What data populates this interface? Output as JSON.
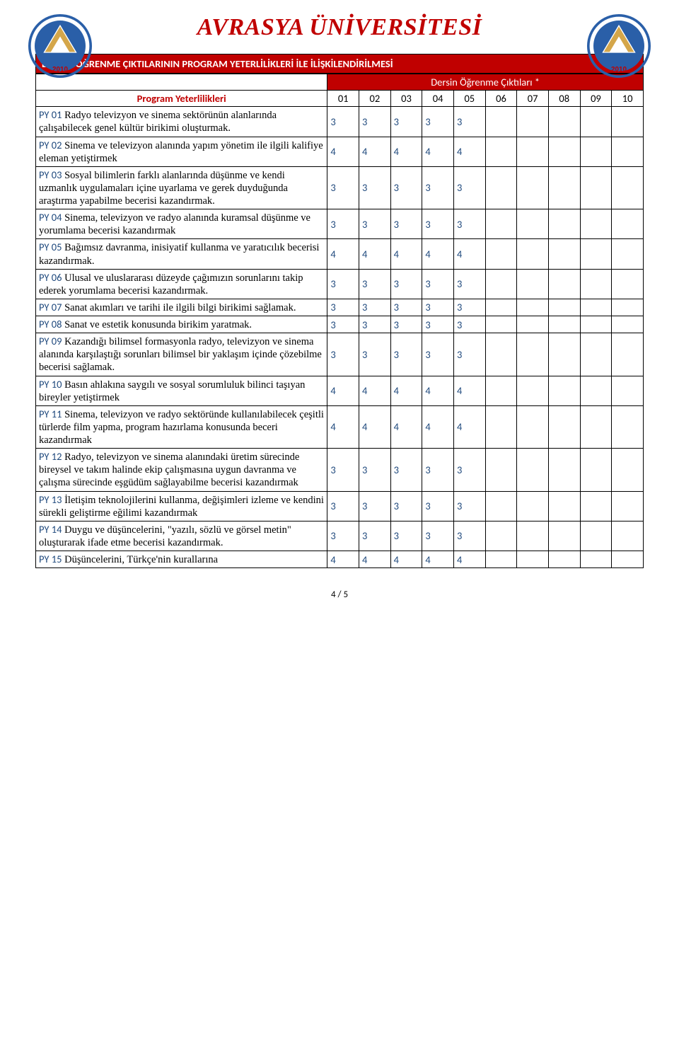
{
  "header": {
    "title": "AVRASYA ÜNİVERSİTESİ",
    "logo_top": "AVRASYA ÜNİVERSİTESİ",
    "logo_year": "2010"
  },
  "section_bar": "DERSİN ÖĞRENME ÇIKTILARININ PROGRAM YETERLİLİKLERİ İLE İLİŞKİLENDİRİLMESİ",
  "table": {
    "outcomes_label": "Dersin Öğrenme Çıktıları *",
    "program_label": "Program Yeterlilikleri",
    "col_headers": [
      "01",
      "02",
      "03",
      "04",
      "05",
      "06",
      "07",
      "08",
      "09",
      "10"
    ],
    "rows": [
      {
        "code": "PY 01",
        "text": " Radyo televizyon ve sinema sektörünün alanlarında çalışabilecek genel kültür birikimi oluşturmak.",
        "vals": [
          "3",
          "3",
          "3",
          "3",
          "3",
          "",
          "",
          "",
          "",
          ""
        ]
      },
      {
        "code": "PY 02",
        "text": " Sinema ve televizyon alanında yapım yönetim ile ilgili kalifiye eleman yetiştirmek",
        "vals": [
          "4",
          "4",
          "4",
          "4",
          "4",
          "",
          "",
          "",
          "",
          ""
        ]
      },
      {
        "code": "PY 03",
        "text": " Sosyal bilimlerin farklı alanlarında düşünme ve kendi uzmanlık uygulamaları içine uyarlama ve gerek duyduğunda araştırma yapabilme becerisi kazandırmak.",
        "vals": [
          "3",
          "3",
          "3",
          "3",
          "3",
          "",
          "",
          "",
          "",
          ""
        ]
      },
      {
        "code": "PY 04",
        "text": " Sinema, televizyon ve radyo alanında kuramsal düşünme ve yorumlama becerisi kazandırmak",
        "vals": [
          "3",
          "3",
          "3",
          "3",
          "3",
          "",
          "",
          "",
          "",
          ""
        ]
      },
      {
        "code": "PY 05",
        "text": " Bağımsız davranma, inisiyatif kullanma ve yaratıcılık becerisi kazandırmak.",
        "vals": [
          "4",
          "4",
          "4",
          "4",
          "4",
          "",
          "",
          "",
          "",
          ""
        ]
      },
      {
        "code": "PY 06",
        "text": " Ulusal ve uluslararası düzeyde çağımızın sorunlarını takip ederek yorumlama becerisi kazandırmak.",
        "vals": [
          "3",
          "3",
          "3",
          "3",
          "3",
          "",
          "",
          "",
          "",
          ""
        ]
      },
      {
        "code": "PY 07",
        "text": " Sanat akımları ve tarihi ile ilgili bilgi birikimi sağlamak.",
        "vals": [
          "3",
          "3",
          "3",
          "3",
          "3",
          "",
          "",
          "",
          "",
          ""
        ]
      },
      {
        "code": "PY 08",
        "text": " Sanat ve estetik konusunda birikim yaratmak.",
        "vals": [
          "3",
          "3",
          "3",
          "3",
          "3",
          "",
          "",
          "",
          "",
          ""
        ]
      },
      {
        "code": "PY 09",
        "text": " Kazandığı bilimsel formasyonla radyo, televizyon ve sinema alanında karşılaştığı sorunları bilimsel bir yaklaşım içinde çözebilme becerisi sağlamak.",
        "vals": [
          "3",
          "3",
          "3",
          "3",
          "3",
          "",
          "",
          "",
          "",
          ""
        ]
      },
      {
        "code": "PY 10",
        "text": " Basın ahlakına saygılı ve sosyal sorumluluk bilinci taşıyan bireyler yetiştirmek",
        "vals": [
          "4",
          "4",
          "4",
          "4",
          "4",
          "",
          "",
          "",
          "",
          ""
        ]
      },
      {
        "code": "PY 11",
        "text": " Sinema, televizyon ve radyo sektöründe kullanılabilecek çeşitli türlerde film yapma, program hazırlama konusunda beceri kazandırmak",
        "vals": [
          "4",
          "4",
          "4",
          "4",
          "4",
          "",
          "",
          "",
          "",
          ""
        ]
      },
      {
        "code": "PY 12",
        "text": " Radyo, televizyon ve sinema alanındaki üretim sürecinde bireysel ve takım halinde ekip çalışmasına uygun davranma ve çalışma sürecinde eşgüdüm sağlayabilme becerisi kazandırmak",
        "vals": [
          "3",
          "3",
          "3",
          "3",
          "3",
          "",
          "",
          "",
          "",
          ""
        ]
      },
      {
        "code": "PY 13",
        "text": " İletişim teknolojilerini kullanma, değişimleri izleme ve kendini sürekli geliştirme eğilimi kazandırmak",
        "vals": [
          "3",
          "3",
          "3",
          "3",
          "3",
          "",
          "",
          "",
          "",
          ""
        ]
      },
      {
        "code": "PY 14",
        "text": " Duygu ve düşüncelerini, \"yazılı, sözlü ve görsel metin\" oluşturarak ifade etme becerisi kazandırmak.",
        "vals": [
          "3",
          "3",
          "3",
          "3",
          "3",
          "",
          "",
          "",
          "",
          ""
        ]
      },
      {
        "code": "PY 15",
        "text": " Düşüncelerini, Türkçe'nin kurallarına",
        "vals": [
          "4",
          "4",
          "4",
          "4",
          "4",
          "",
          "",
          "",
          "",
          ""
        ]
      }
    ]
  },
  "page_number": "4 / 5",
  "colors": {
    "red": "#c00000",
    "navy": "#1f497d",
    "logo_blue": "#2a5fa8",
    "logo_gold": "#d4a64a"
  }
}
